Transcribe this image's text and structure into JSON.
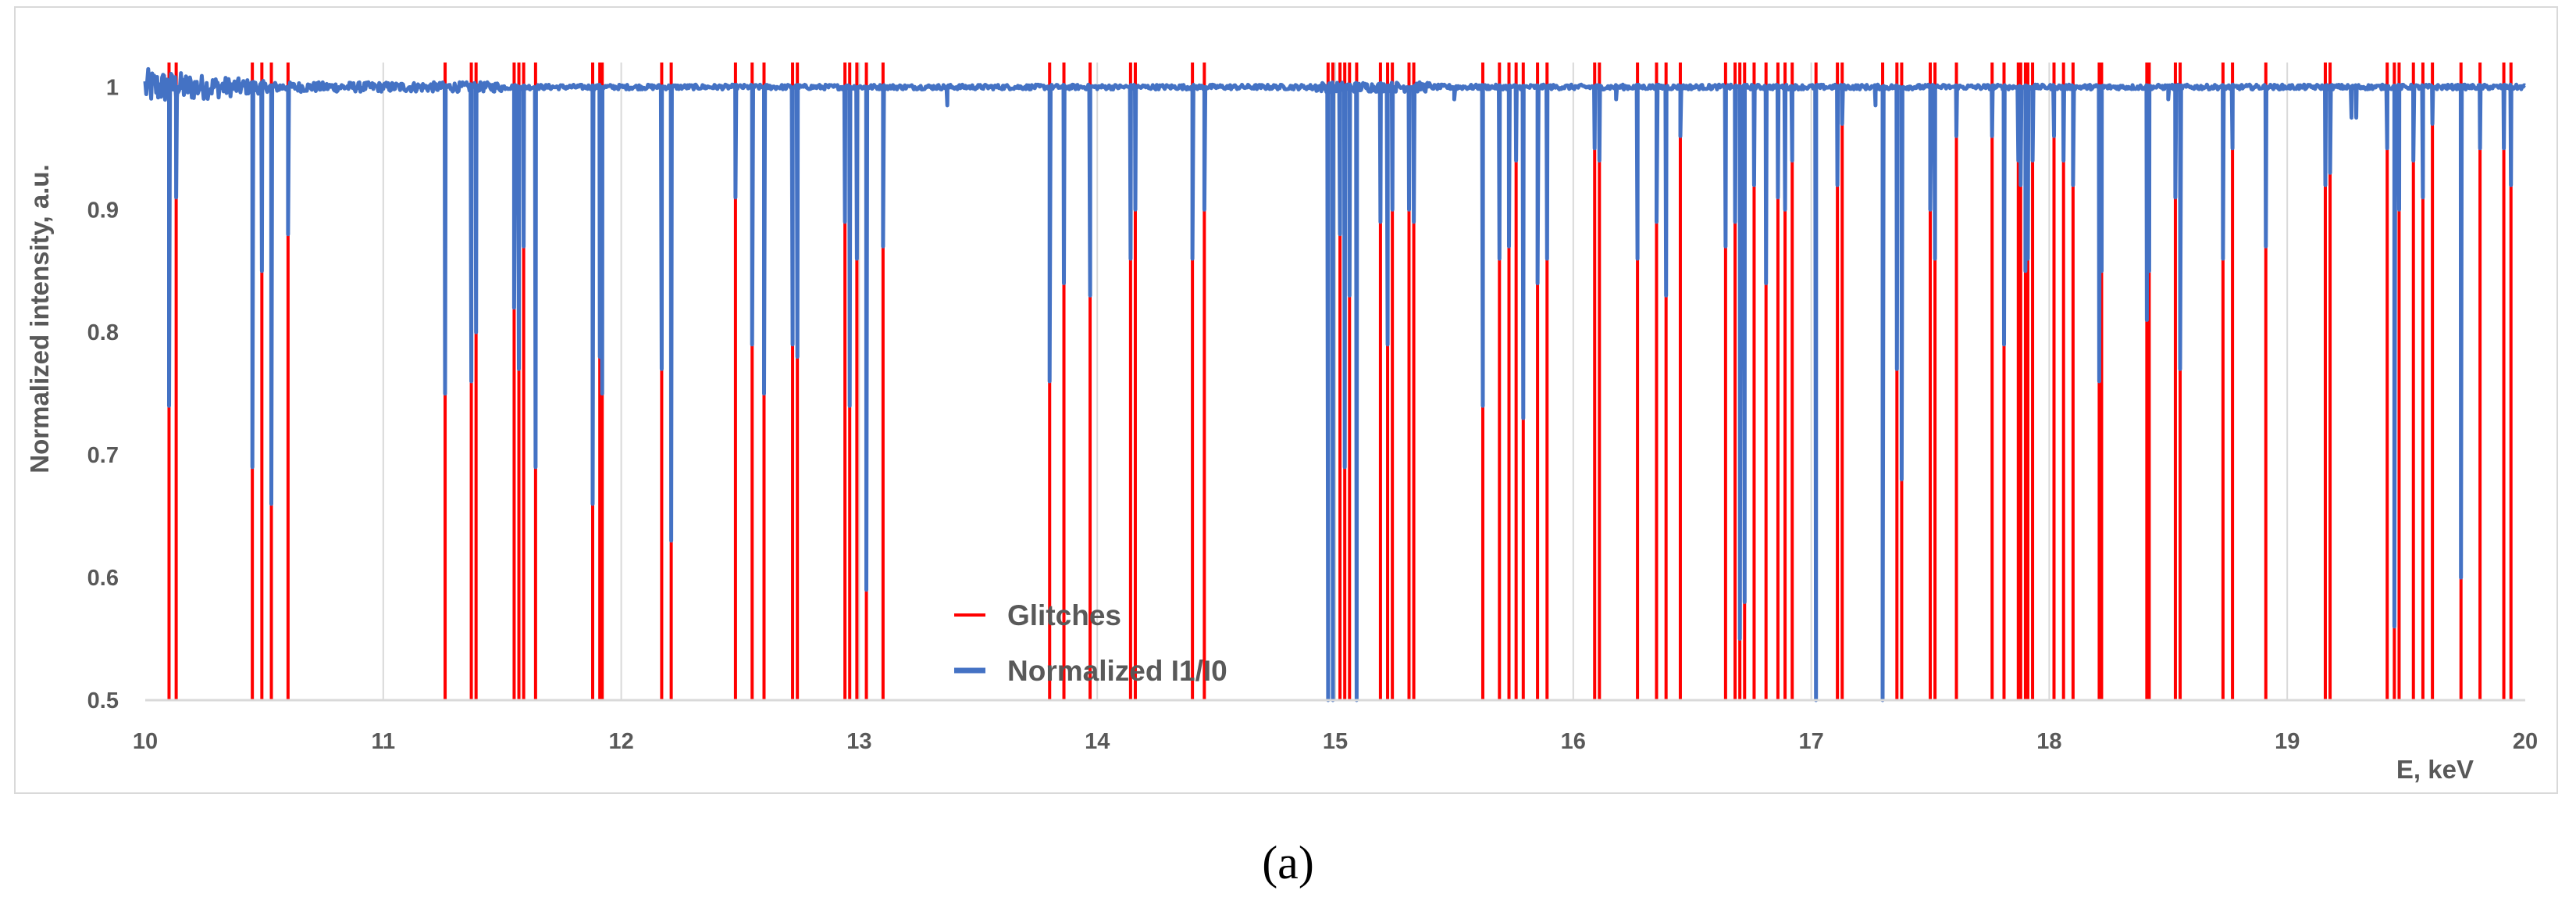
{
  "caption": "(a)",
  "chart_data": {
    "type": "line",
    "title": "",
    "xlabel": "E, keV",
    "ylabel": "Normalized intensity, a.u.",
    "xlim": [
      10,
      20
    ],
    "ylim": [
      0.5,
      1.02
    ],
    "x_ticks": [
      "10",
      "11",
      "12",
      "13",
      "14",
      "15",
      "16",
      "17",
      "18",
      "19",
      "20"
    ],
    "y_ticks": [
      "0.5",
      "0.6",
      "0.7",
      "0.8",
      "0.9",
      "1"
    ],
    "grid": "vertical",
    "legend_position": "bottom-center",
    "colors": {
      "glitches": "#ff0000",
      "normalized": "#4472c4",
      "grid": "#d9d9d9",
      "text": "#595959"
    },
    "series": [
      {
        "name": "Glitches",
        "kind": "impulse",
        "baseline": 1.0,
        "comment": "red vertical lines from 1.0 down to 0.5 at each glitch energy"
      },
      {
        "name": "Normalized I1/I0",
        "kind": "line",
        "baseline": 1.0
      }
    ],
    "glitches": [
      {
        "e": 10.1,
        "dip": 0.74
      },
      {
        "e": 10.13,
        "dip": 0.91
      },
      {
        "e": 10.45,
        "dip": 0.69
      },
      {
        "e": 10.49,
        "dip": 0.85
      },
      {
        "e": 10.53,
        "dip": 0.66
      },
      {
        "e": 10.6,
        "dip": 0.88
      },
      {
        "e": 11.26,
        "dip": 0.75
      },
      {
        "e": 11.37,
        "dip": 0.76
      },
      {
        "e": 11.39,
        "dip": 0.8
      },
      {
        "e": 11.55,
        "dip": 0.82
      },
      {
        "e": 11.57,
        "dip": 0.77
      },
      {
        "e": 11.59,
        "dip": 0.87
      },
      {
        "e": 11.64,
        "dip": 0.69
      },
      {
        "e": 11.88,
        "dip": 0.66
      },
      {
        "e": 11.91,
        "dip": 0.78
      },
      {
        "e": 11.92,
        "dip": 0.75
      },
      {
        "e": 12.17,
        "dip": 0.77
      },
      {
        "e": 12.21,
        "dip": 0.63
      },
      {
        "e": 12.48,
        "dip": 0.91
      },
      {
        "e": 12.55,
        "dip": 0.79
      },
      {
        "e": 12.6,
        "dip": 0.75
      },
      {
        "e": 12.72,
        "dip": 0.79
      },
      {
        "e": 12.74,
        "dip": 0.78
      },
      {
        "e": 12.94,
        "dip": 0.89
      },
      {
        "e": 12.96,
        "dip": 0.74
      },
      {
        "e": 12.99,
        "dip": 0.86
      },
      {
        "e": 13.03,
        "dip": 0.59
      },
      {
        "e": 13.1,
        "dip": 0.87
      },
      {
        "e": 13.8,
        "dip": 0.76
      },
      {
        "e": 13.86,
        "dip": 0.84
      },
      {
        "e": 13.97,
        "dip": 0.83
      },
      {
        "e": 14.14,
        "dip": 0.86
      },
      {
        "e": 14.16,
        "dip": 0.9
      },
      {
        "e": 14.4,
        "dip": 0.86
      },
      {
        "e": 14.45,
        "dip": 0.9
      },
      {
        "e": 14.97,
        "dip": 0.5
      },
      {
        "e": 14.99,
        "dip": 0.5
      },
      {
        "e": 15.02,
        "dip": 0.88
      },
      {
        "e": 15.04,
        "dip": 0.69
      },
      {
        "e": 15.06,
        "dip": 0.83
      },
      {
        "e": 15.09,
        "dip": 0.5
      },
      {
        "e": 15.19,
        "dip": 0.89
      },
      {
        "e": 15.22,
        "dip": 0.79
      },
      {
        "e": 15.24,
        "dip": 0.9
      },
      {
        "e": 15.31,
        "dip": 0.9
      },
      {
        "e": 15.33,
        "dip": 0.89
      },
      {
        "e": 15.62,
        "dip": 0.74
      },
      {
        "e": 15.69,
        "dip": 0.86
      },
      {
        "e": 15.73,
        "dip": 0.87
      },
      {
        "e": 15.76,
        "dip": 0.94
      },
      {
        "e": 15.79,
        "dip": 0.73
      },
      {
        "e": 15.85,
        "dip": 0.84
      },
      {
        "e": 15.89,
        "dip": 0.86
      },
      {
        "e": 16.09,
        "dip": 0.95
      },
      {
        "e": 16.11,
        "dip": 0.94
      },
      {
        "e": 16.27,
        "dip": 0.86
      },
      {
        "e": 16.35,
        "dip": 0.89
      },
      {
        "e": 16.39,
        "dip": 0.83
      },
      {
        "e": 16.45,
        "dip": 0.96
      },
      {
        "e": 16.64,
        "dip": 0.87
      },
      {
        "e": 16.68,
        "dip": 0.89
      },
      {
        "e": 16.7,
        "dip": 0.55
      },
      {
        "e": 16.72,
        "dip": 0.58
      },
      {
        "e": 16.76,
        "dip": 0.92
      },
      {
        "e": 16.81,
        "dip": 0.84
      },
      {
        "e": 16.86,
        "dip": 0.91
      },
      {
        "e": 16.89,
        "dip": 0.9
      },
      {
        "e": 16.92,
        "dip": 0.94
      },
      {
        "e": 17.02,
        "dip": 0.5
      },
      {
        "e": 17.11,
        "dip": 0.92
      },
      {
        "e": 17.13,
        "dip": 0.97
      },
      {
        "e": 17.3,
        "dip": 0.5
      },
      {
        "e": 17.36,
        "dip": 0.77
      },
      {
        "e": 17.38,
        "dip": 0.68
      },
      {
        "e": 17.5,
        "dip": 0.9
      },
      {
        "e": 17.52,
        "dip": 0.86
      },
      {
        "e": 17.61,
        "dip": 0.96
      },
      {
        "e": 17.76,
        "dip": 0.96
      },
      {
        "e": 17.81,
        "dip": 0.79
      },
      {
        "e": 17.87,
        "dip": 0.94
      },
      {
        "e": 17.88,
        "dip": 0.92
      },
      {
        "e": 17.9,
        "dip": 0.85
      },
      {
        "e": 17.91,
        "dip": 0.86
      },
      {
        "e": 17.93,
        "dip": 0.94
      },
      {
        "e": 18.02,
        "dip": 0.96
      },
      {
        "e": 18.06,
        "dip": 0.94
      },
      {
        "e": 18.1,
        "dip": 0.92
      },
      {
        "e": 18.21,
        "dip": 0.76
      },
      {
        "e": 18.22,
        "dip": 0.85
      },
      {
        "e": 18.41,
        "dip": 0.81
      },
      {
        "e": 18.42,
        "dip": 0.85
      },
      {
        "e": 18.53,
        "dip": 0.91
      },
      {
        "e": 18.55,
        "dip": 0.77
      },
      {
        "e": 18.73,
        "dip": 0.86
      },
      {
        "e": 18.77,
        "dip": 0.95
      },
      {
        "e": 18.91,
        "dip": 0.87
      },
      {
        "e": 19.16,
        "dip": 0.92
      },
      {
        "e": 19.18,
        "dip": 0.93
      },
      {
        "e": 19.42,
        "dip": 0.95
      },
      {
        "e": 19.45,
        "dip": 0.56
      },
      {
        "e": 19.47,
        "dip": 0.9
      },
      {
        "e": 19.53,
        "dip": 0.94
      },
      {
        "e": 19.57,
        "dip": 0.91
      },
      {
        "e": 19.61,
        "dip": 0.97
      },
      {
        "e": 19.73,
        "dip": 0.6
      },
      {
        "e": 19.81,
        "dip": 0.95
      },
      {
        "e": 19.91,
        "dip": 0.95
      },
      {
        "e": 19.94,
        "dip": 0.92
      }
    ],
    "minor_dips": [
      {
        "e": 13.37,
        "dip": 0.985
      },
      {
        "e": 15.5,
        "dip": 0.99
      },
      {
        "e": 16.18,
        "dip": 0.99
      },
      {
        "e": 17.27,
        "dip": 0.985
      },
      {
        "e": 18.5,
        "dip": 0.99
      },
      {
        "e": 19.27,
        "dip": 0.975
      },
      {
        "e": 19.29,
        "dip": 0.975
      }
    ]
  }
}
